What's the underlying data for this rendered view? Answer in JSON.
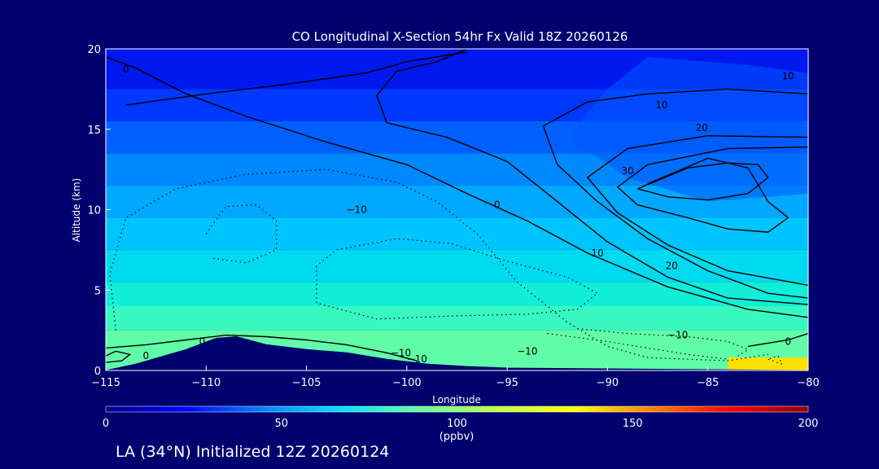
{
  "chart_data": {
    "type": "heatmap",
    "title": "CO Longitudinal X-Section 54hr  Fx Valid 18Z 20260126",
    "xlabel": "Longitude",
    "ylabel": "Altitude (km)",
    "xlim": [
      -115,
      -80
    ],
    "ylim": [
      0,
      20
    ],
    "x_ticks": [
      -115,
      -110,
      -105,
      -100,
      -95,
      -90,
      -85,
      -80
    ],
    "x_tick_labels": [
      "−115",
      "−110",
      "−105",
      "−100",
      "−95",
      "−90",
      "−85",
      "−80"
    ],
    "y_ticks": [
      0,
      5,
      10,
      15,
      20
    ],
    "y_tick_labels": [
      "0",
      "5",
      "10",
      "15",
      "20"
    ],
    "colorbar": {
      "min": 0,
      "max": 200,
      "ticks": [
        0,
        50,
        100,
        150,
        200
      ],
      "tick_labels": [
        "0",
        "50",
        "100",
        "150",
        "200"
      ],
      "unit_label": "(ppbv)",
      "colors": [
        "#00008a",
        "#0000ff",
        "#0080ff",
        "#00e0ff",
        "#60ffa0",
        "#c0ff40",
        "#ffff00",
        "#ff8000",
        "#ff0000",
        "#900000"
      ]
    },
    "field_bands": [
      {
        "ymin": 17.5,
        "ymax": 20,
        "color": "#0018f0"
      },
      {
        "ymin": 15.5,
        "ymax": 17.5,
        "color": "#0038ff"
      },
      {
        "ymin": 13.5,
        "ymax": 15.5,
        "color": "#0060ff"
      },
      {
        "ymin": 11.5,
        "ymax": 13.5,
        "color": "#0088ff"
      },
      {
        "ymin": 9.5,
        "ymax": 11.5,
        "color": "#00a8ff"
      },
      {
        "ymin": 7.5,
        "ymax": 9.5,
        "color": "#00c4ff"
      },
      {
        "ymin": 5.5,
        "ymax": 7.5,
        "color": "#00daf0"
      },
      {
        "ymin": 4.0,
        "ymax": 5.5,
        "color": "#10eed8"
      },
      {
        "ymin": 2.5,
        "ymax": 4.0,
        "color": "#38f8c0"
      },
      {
        "ymin": 0,
        "ymax": 2.5,
        "color": "#60fca8"
      }
    ],
    "high_co_region": {
      "x": [
        -84,
        -80
      ],
      "y": [
        0,
        0.8
      ],
      "color": "#ffe000"
    },
    "upper_intrusion": [
      [
        -88,
        19.5
      ],
      [
        -83,
        19
      ],
      [
        -80,
        18.5
      ],
      [
        -80,
        11
      ],
      [
        -85,
        10.5
      ],
      [
        -89,
        12
      ],
      [
        -92,
        14.5
      ],
      [
        -90,
        17.5
      ],
      [
        -88,
        19.5
      ]
    ],
    "terrain": [
      [
        -115,
        0
      ],
      [
        -113.5,
        0.4
      ],
      [
        -111,
        1.3
      ],
      [
        -109.5,
        2
      ],
      [
        -108.5,
        2.1
      ],
      [
        -107,
        1.6
      ],
      [
        -105,
        1.3
      ],
      [
        -103,
        1.1
      ],
      [
        -101,
        0.7
      ],
      [
        -99,
        0.4
      ],
      [
        -97,
        0.25
      ],
      [
        -95,
        0.15
      ],
      [
        -90,
        0.1
      ],
      [
        -85,
        0.05
      ],
      [
        -80,
        0
      ]
    ],
    "contour_levels": [
      -10,
      0,
      10,
      20,
      30
    ],
    "contour_labels": [
      {
        "text": "0",
        "x": -114,
        "y": 18.7
      },
      {
        "text": "10",
        "x": -81,
        "y": 18.3
      },
      {
        "text": "10",
        "x": -87.3,
        "y": 16.5
      },
      {
        "text": "20",
        "x": -85.3,
        "y": 15.1
      },
      {
        "text": "30",
        "x": -89,
        "y": 12.4
      },
      {
        "text": "0",
        "x": -95.5,
        "y": 10.3
      },
      {
        "text": "−10",
        "x": -102.5,
        "y": 10
      },
      {
        "text": "10",
        "x": -90.5,
        "y": 7.3
      },
      {
        "text": "20",
        "x": -86.8,
        "y": 6.5
      },
      {
        "text": "−10",
        "x": -86.5,
        "y": 2.2
      },
      {
        "text": "0",
        "x": -81,
        "y": 1.8
      },
      {
        "text": "−10",
        "x": -94,
        "y": 1.2
      },
      {
        "text": "0",
        "x": -110.2,
        "y": 1.8
      },
      {
        "text": "0",
        "x": -113,
        "y": 0.9
      },
      {
        "text": "−10",
        "x": -100.3,
        "y": 1.1
      },
      {
        "text": "−10",
        "x": -99.5,
        "y": 0.7
      }
    ]
  },
  "footer": {
    "caption": "LA (34°N) Initialized 12Z 20260124"
  }
}
